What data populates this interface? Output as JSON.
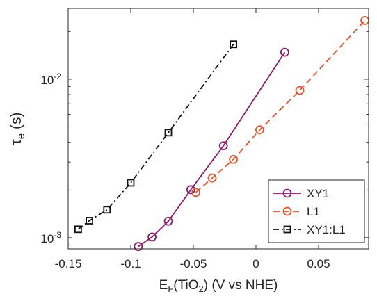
{
  "chart_data": {
    "type": "line",
    "title": "",
    "xlabel": {
      "main": "E",
      "sub": "F",
      "rest": "(TiO",
      "sub2": "2",
      "end": ") (V vs NHE)"
    },
    "ylabel": {
      "main": "τ",
      "sub": "e",
      "rest": " (s)"
    },
    "xlim": [
      -0.15,
      0.09
    ],
    "ylim": [
      0.00085,
      0.028
    ],
    "yscale": "log",
    "xticks": [
      -0.15,
      -0.1,
      -0.05,
      0,
      0.05
    ],
    "xtick_labels": [
      "-0.15",
      "-0.1",
      "-0.05",
      "0",
      "0.05"
    ],
    "yticks": [
      0.001,
      0.01
    ],
    "ytick_labels": [
      {
        "base": "10",
        "exp": "-3"
      },
      {
        "base": "10",
        "exp": "-2"
      }
    ],
    "grid": false,
    "legend_position": "bottom-right",
    "series": [
      {
        "name": "XY1",
        "color": "#8b1a6b",
        "line_style": "solid",
        "marker": "circle",
        "x": [
          -0.094,
          -0.083,
          -0.07,
          -0.052,
          -0.026,
          0.023
        ],
        "y": [
          0.00088,
          0.00101,
          0.00127,
          0.00201,
          0.0038,
          0.0148
        ]
      },
      {
        "name": "L1",
        "color": "#e8542a",
        "line_style": "dashed",
        "marker": "circle",
        "x": [
          -0.048,
          -0.035,
          -0.018,
          0.003,
          0.035,
          0.087
        ],
        "y": [
          0.00193,
          0.00238,
          0.00312,
          0.0048,
          0.0085,
          0.0235
        ]
      },
      {
        "name": "XY1:L1",
        "color": "#111111",
        "line_style": "dashdot",
        "marker": "square",
        "x": [
          -0.142,
          -0.133,
          -0.119,
          -0.1,
          -0.07,
          -0.018
        ],
        "y": [
          0.00113,
          0.00128,
          0.0015,
          0.00222,
          0.0046,
          0.0166
        ]
      }
    ]
  }
}
